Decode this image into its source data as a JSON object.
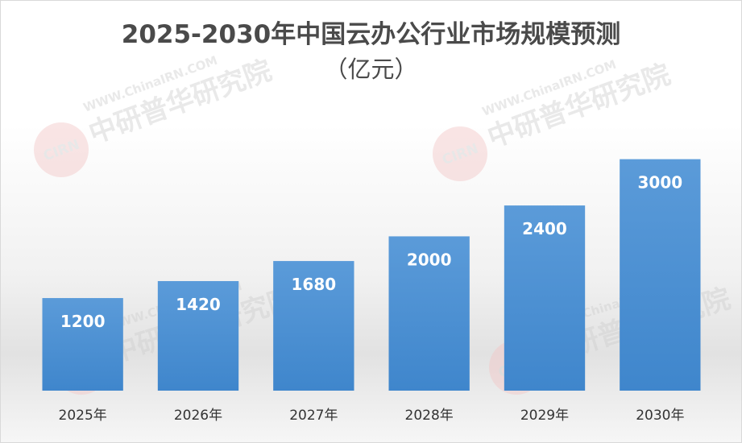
{
  "chart_data": {
    "type": "bar",
    "title": "2025-2030年中国云办公行业市场规模预测",
    "subtitle": "（亿元）",
    "categories": [
      "2025年",
      "2026年",
      "2027年",
      "2028年",
      "2029年",
      "2030年"
    ],
    "values": [
      1200,
      1420,
      1680,
      2000,
      2400,
      3000
    ],
    "ylim": [
      0,
      3800
    ],
    "grid": false,
    "legend": "none",
    "bar_color": "#4a8fd0"
  },
  "watermark": {
    "logo_text": "CIRN",
    "brand_text": "中研普华研究院",
    "url_text": "WWW.ChinaIRN.COM"
  }
}
